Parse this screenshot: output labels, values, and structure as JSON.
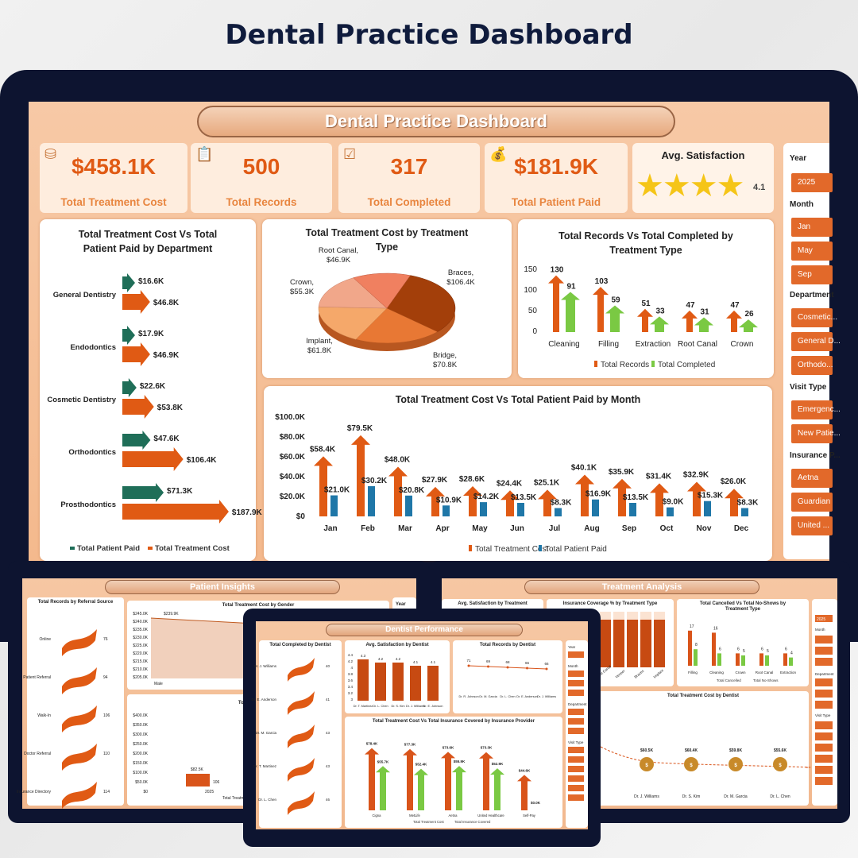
{
  "page_title": "Dental Practice Dashboard",
  "main": {
    "banner": "Dental Practice Dashboard",
    "kpis": [
      {
        "value": "$458.1K",
        "label": "Total Treatment Cost",
        "icon": "coins-icon"
      },
      {
        "value": "500",
        "label": "Total Records",
        "icon": "clipboard-icon"
      },
      {
        "value": "317",
        "label": "Total Completed",
        "icon": "checklist-icon"
      },
      {
        "value": "$181.9K",
        "label": "Total Patient Paid",
        "icon": "money-bag-icon"
      }
    ],
    "satisfaction": {
      "label": "Avg. Satisfaction",
      "value": "4.1",
      "stars": 4.1,
      "star_color": "#f5c518"
    },
    "colors": {
      "accent": "#e05a14",
      "green": "#1f6e58",
      "light_green": "#7ac943",
      "blue": "#1f77a8"
    },
    "slicer": {
      "year_label": "Year",
      "year": "2025",
      "month_label": "Month",
      "months": [
        "Jan",
        "May",
        "Sep"
      ],
      "department_label": "Department",
      "departments": [
        "Cosmetic...",
        "General D...",
        "Orthodo..."
      ],
      "visit_label": "Visit Type",
      "visits": [
        "Emergenc...",
        "New Patie..."
      ],
      "insurance_label": "Insurance P...",
      "insurances": [
        "Aetna",
        "Guardian",
        "United ..."
      ]
    }
  },
  "chart_data": [
    {
      "type": "bar",
      "title": "Total Treatment Cost Vs Total Patient Paid by Department",
      "categories": [
        "General Dentistry",
        "Endodontics",
        "Cosmetic Dentistry",
        "Orthodontics",
        "Prosthodontics"
      ],
      "series": [
        {
          "name": "Total Patient Paid",
          "values": [
            16.6,
            17.9,
            22.6,
            47.6,
            71.3
          ],
          "labels": [
            "$16.6K",
            "$17.9K",
            "$22.6K",
            "$47.6K",
            "$71.3K"
          ]
        },
        {
          "name": "Total Treatment Cost",
          "values": [
            46.8,
            46.9,
            53.8,
            106.4,
            187.9
          ],
          "labels": [
            "$46.8K",
            "$46.9K",
            "$53.8K",
            "$106.4K",
            "$187.9K"
          ]
        }
      ],
      "orientation": "horizontal"
    },
    {
      "type": "pie",
      "title": "Total Treatment Cost by Treatment Type",
      "categories": [
        "Braces",
        "Bridge",
        "Implant",
        "Crown",
        "Root Canal"
      ],
      "values": [
        106.4,
        70.8,
        61.8,
        55.3,
        46.9
      ],
      "labels": [
        "Braces,\n$106.4K",
        "Bridge,\n$70.8K",
        "Implant,\n$61.8K",
        "Crown,\n$55.3K",
        "Root Canal,\n$46.9K"
      ]
    },
    {
      "type": "bar",
      "title": "Total Records Vs Total Completed by Treatment Type",
      "categories": [
        "Cleaning",
        "Filling",
        "Extraction",
        "Root Canal",
        "Crown"
      ],
      "series": [
        {
          "name": "Total Records",
          "values": [
            130,
            103,
            51,
            47,
            47
          ]
        },
        {
          "name": "Total Completed",
          "values": [
            91,
            59,
            33,
            31,
            26
          ]
        }
      ],
      "ylim": [
        0,
        150
      ],
      "yticks": [
        "150",
        "100",
        "50",
        "0"
      ]
    },
    {
      "type": "bar",
      "title": "Total Treatment Cost Vs Total Patient Paid by Month",
      "categories": [
        "Jan",
        "Feb",
        "Mar",
        "Apr",
        "May",
        "Jun",
        "Jul",
        "Aug",
        "Sep",
        "Oct",
        "Nov",
        "Dec"
      ],
      "series": [
        {
          "name": "Total Treatment Cost",
          "values": [
            58.4,
            79.5,
            48.0,
            27.9,
            28.6,
            24.4,
            25.1,
            40.1,
            35.9,
            31.4,
            32.9,
            26.0
          ],
          "labels": [
            "$58.4K",
            "$79.5K",
            "$48.0K",
            "$27.9K",
            "$28.6K",
            "$24.4K",
            "$25.1K",
            "$40.1K",
            "$35.9K",
            "$31.4K",
            "$32.9K",
            "$26.0K"
          ]
        },
        {
          "name": "Total Patient Paid",
          "values": [
            21.0,
            30.2,
            20.8,
            10.9,
            14.2,
            13.5,
            8.3,
            16.9,
            13.5,
            9.0,
            15.3,
            8.3
          ],
          "labels": [
            "$21.0K",
            "$30.2K",
            "$20.8K",
            "$10.9K",
            "$14.2K",
            "$13.5K",
            "$8.3K",
            "$16.9K",
            "$13.5K",
            "$9.0K",
            "$15.3K",
            "$8.3K"
          ]
        }
      ],
      "ylim": [
        0,
        100
      ],
      "yticks": [
        "$100.0K",
        "$80.0K",
        "$60.0K",
        "$40.0K",
        "$20.0K",
        "$0"
      ]
    }
  ],
  "previews": {
    "left": {
      "banner": "Patient Insights",
      "referral_title": "Total Records by Referral Source",
      "referral": [
        {
          "label": "Online",
          "value": "76"
        },
        {
          "label": "Patient Referral",
          "value": "94"
        },
        {
          "label": "Walk-In",
          "value": "106"
        },
        {
          "label": "Doctor Referral",
          "value": "110"
        },
        {
          "label": "Insurance Directory",
          "value": "114"
        }
      ],
      "gender_title": "Total Treatment Cost by Gender",
      "gender_ticks": [
        "$245.0K",
        "$240.0K",
        "$235.0K",
        "$230.0K",
        "$225.0K",
        "$220.0K",
        "$215.0K",
        "$210.0K",
        "$205.0K"
      ],
      "gender_label": "$239.9K",
      "gender_x": "Male",
      "year_title": "Total Treatment C",
      "year_ticks": [
        "$400.0K",
        "$350.0K",
        "$300.0K",
        "$250.0K",
        "$200.0K",
        "$150.0K",
        "$100.0K",
        "$50.0K",
        "$0"
      ],
      "year_bar_label": "$82.5K",
      "year_bar_count": "106",
      "year_x": "2025",
      "year_legend": "Total Treatm",
      "slicer_label": "Year"
    },
    "center": {
      "banner": "Dentist Performance",
      "completed_title": "Total Completed by Dentist",
      "completed": [
        {
          "label": "Dr. J. Williams",
          "value": "40"
        },
        {
          "label": "Dr. E. Anderson",
          "value": "41"
        },
        {
          "label": "Dr. M. Garcia",
          "value": "43"
        },
        {
          "label": "Dr. T. Martinez",
          "value": "43"
        },
        {
          "label": "Dr. L. Chen",
          "value": "46"
        }
      ],
      "sat_title": "Avg. Satisfaction by Dentist",
      "sat_values": [
        "4.3",
        "4.2",
        "4.2",
        "4.1",
        "4.1"
      ],
      "sat_names": [
        "Dr. T. Martinez",
        "Dr. L. Chen",
        "Dr. S. Kim",
        "Dr. J. Williams",
        "Dr. E. Johnson"
      ],
      "sat_ticks": [
        "4.4",
        "4.2",
        "4",
        "3.8",
        "3.6",
        "3.4",
        "3.2",
        "3"
      ],
      "records_title": "Total Records by Dentist",
      "records_values": [
        "71",
        "69",
        "68",
        "66",
        "66"
      ],
      "records_names": [
        "Dr. R. Johnson",
        "Dr. M. Garcia",
        "Dr. L. Chen",
        "Dr. E. Anderson",
        "Dr. J. Williams"
      ],
      "insurance_title": "Total Treatment Cost Vs Total Insurance Covered by Insurance Provider",
      "insurance_cost": [
        "$78.4K",
        "$77.3K",
        "$73.6K",
        "$73.3K",
        "$44.6K"
      ],
      "insurance_covered": [
        "$55.7K",
        "$52.4K",
        "$55.9K",
        "$52.9K",
        "$0.0K"
      ],
      "insurance_names": [
        "Cigna",
        "MetLife",
        "Aetna",
        "United Healthcare",
        "Self-Pay"
      ],
      "insurance_legend": [
        "Total Treatment Cost",
        "Total Insurance Covered"
      ],
      "slicer": [
        "Year",
        "Month",
        "Department",
        "Visit Type"
      ]
    },
    "right": {
      "banner": "Treatment Analysis",
      "sat_title": "Avg. Satisfaction by Treatment",
      "coverage_title": "Insurance Coverage % by Treatment Type",
      "coverage_labels": [
        "Cleaning",
        "Root Canal",
        "Veneer",
        "Braces",
        "Implant"
      ],
      "cancel_title": "Total Cancelled Vs Total No-Shows by Treatment Type",
      "cancel_values": [
        "17",
        "16",
        "6",
        "6",
        "6"
      ],
      "noshow_values": [
        "8",
        "6",
        "5",
        "5",
        "4"
      ],
      "cancel_names": [
        "Filling",
        "Cleaning",
        "Crown",
        "Root Canal",
        "Extraction"
      ],
      "cancel_legend": [
        "Total Cancelled",
        "Total No-Shows"
      ],
      "dentist_cost_title": "Total Treatment Cost by Dentist",
      "dentist_cost_values": [
        "$60.5K",
        "$60.4K",
        "$59.8K",
        "$55.6K"
      ],
      "dentist_cost_names": [
        "Dr. J. Williams",
        "Dr. S. Kim",
        "Dr. M. Garcia",
        "Dr. L. Chen"
      ],
      "slicer": [
        "2025",
        "Month",
        "Department",
        "Visit Type"
      ]
    }
  }
}
